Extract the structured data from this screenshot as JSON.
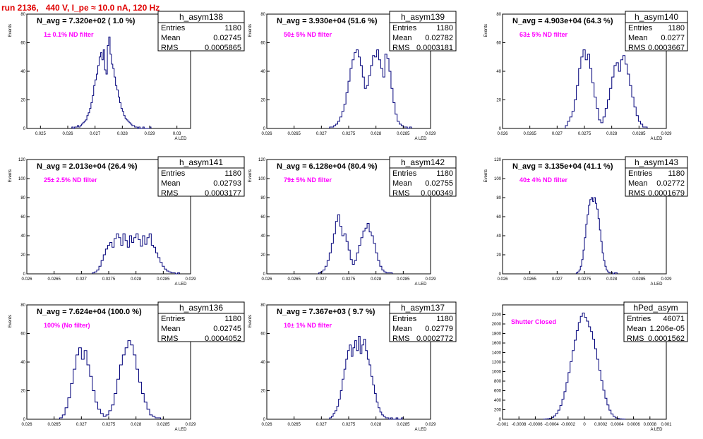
{
  "header": {
    "run_title": "run 2136,   440 V, I_pe ≈ 10.0 nA, 120 Hz"
  },
  "chart_data": [
    {
      "type": "bar",
      "name": "h_asym138",
      "title": "N_avg = 7.320e+02 ( 1.0 %)",
      "note": "1± 0.1% ND filter",
      "xlabel": "A_LED",
      "ylabel": "Events",
      "xlim": [
        0.0245,
        0.0305
      ],
      "ylim": [
        0,
        80
      ],
      "xticks": [
        0.025,
        0.026,
        0.027,
        0.028,
        0.029,
        0.03
      ],
      "xtick_labels": [
        "0.025",
        "0.026",
        "0.027",
        "0.028",
        "0.029",
        "0.03"
      ],
      "yticks": [
        0,
        20,
        40,
        60,
        80
      ],
      "stats": {
        "Entries": "1180",
        "Mean": "0.02745",
        "RMS": "0.0005865"
      },
      "bins": {
        "x_start": 0.02615,
        "x_end": 0.02905,
        "values": [
          1,
          0,
          1,
          1,
          2,
          1,
          2,
          3,
          4,
          5,
          6,
          9,
          11,
          14,
          18,
          23,
          30,
          34,
          38,
          44,
          50,
          53,
          48,
          55,
          41,
          38,
          58,
          64,
          52,
          45,
          42,
          36,
          30,
          27,
          22,
          18,
          14,
          12,
          9,
          7,
          6,
          5,
          4,
          3,
          2,
          2,
          1,
          1,
          0,
          1,
          0,
          0,
          1,
          0,
          0,
          0,
          0,
          1
        ]
      }
    },
    {
      "type": "bar",
      "name": "h_asym139",
      "title": "N_avg = 3.930e+04 (51.6 %)",
      "note": "50± 5% ND filter",
      "xlabel": "A_LED",
      "ylabel": "Events",
      "xlim": [
        0.026,
        0.029
      ],
      "ylim": [
        0,
        80
      ],
      "xticks": [
        0.026,
        0.0265,
        0.027,
        0.0275,
        0.028,
        0.0285,
        0.029
      ],
      "xtick_labels": [
        "0.026",
        "0.0265",
        "0.027",
        "0.0275",
        "0.028",
        "0.0285",
        "0.029"
      ],
      "yticks": [
        0,
        20,
        40,
        60,
        80
      ],
      "stats": {
        "Entries": "1180",
        "Mean": "0.02782",
        "RMS": "0.0003181"
      },
      "bins": {
        "x_start": 0.02715,
        "x_end": 0.02865,
        "values": [
          1,
          1,
          2,
          3,
          5,
          8,
          12,
          17,
          25,
          33,
          42,
          48,
          53,
          55,
          50,
          44,
          36,
          28,
          30,
          37,
          44,
          51,
          50,
          55,
          48,
          42,
          36,
          52,
          49,
          40,
          28,
          18,
          10,
          5,
          3,
          2,
          1,
          1,
          0,
          1
        ]
      }
    },
    {
      "type": "bar",
      "name": "h_asym140",
      "title": "N_avg = 4.903e+04 (64.3 %)",
      "note": "63± 5% ND filter",
      "xlabel": "A_LED",
      "ylabel": "Events",
      "xlim": [
        0.026,
        0.029
      ],
      "ylim": [
        0,
        80
      ],
      "xticks": [
        0.026,
        0.0265,
        0.027,
        0.0275,
        0.028,
        0.0285,
        0.029
      ],
      "xtick_labels": [
        "0.026",
        "0.0265",
        "0.027",
        "0.0275",
        "0.028",
        "0.0285",
        "0.029"
      ],
      "yticks": [
        0,
        20,
        40,
        60,
        80
      ],
      "stats": {
        "Entries": "1180",
        "Mean": "0.0277",
        "RMS": "0.0003667"
      },
      "bins": {
        "x_start": 0.02715,
        "x_end": 0.02865,
        "values": [
          2,
          5,
          8,
          12,
          20,
          30,
          42,
          50,
          55,
          48,
          52,
          42,
          32,
          22,
          14,
          6,
          4,
          8,
          14,
          20,
          28,
          36,
          44,
          46,
          40,
          48,
          51,
          45,
          38,
          30,
          22,
          15,
          9,
          5,
          3,
          1,
          1
        ]
      }
    },
    {
      "type": "bar",
      "name": "h_asym141",
      "title": "N_avg = 2.013e+04 (26.4 %)",
      "note": "25± 2.5% ND filter",
      "xlabel": "A_LED",
      "ylabel": "Events",
      "xlim": [
        0.026,
        0.029
      ],
      "ylim": [
        0,
        120
      ],
      "xticks": [
        0.026,
        0.0265,
        0.027,
        0.0275,
        0.028,
        0.0285,
        0.029
      ],
      "xtick_labels": [
        "0.026",
        "0.0265",
        "0.027",
        "0.0275",
        "0.028",
        "0.0285",
        "0.029"
      ],
      "yticks": [
        0,
        20,
        40,
        60,
        80,
        100,
        120
      ],
      "stats": {
        "Entries": "1180",
        "Mean": "0.02793",
        "RMS": "0.0003177"
      },
      "bins": {
        "x_start": 0.0272,
        "x_end": 0.0288,
        "values": [
          1,
          2,
          4,
          8,
          14,
          20,
          26,
          30,
          33,
          28,
          37,
          42,
          38,
          30,
          42,
          35,
          28,
          40,
          33,
          38,
          42,
          36,
          29,
          40,
          31,
          38,
          42,
          30,
          28,
          22,
          17,
          12,
          8,
          5,
          3,
          2,
          1,
          1,
          0,
          1
        ]
      }
    },
    {
      "type": "bar",
      "name": "h_asym142",
      "title": "N_avg = 6.128e+04 (80.4 %)",
      "note": "79± 5% ND filter",
      "xlabel": "A_LED",
      "ylabel": "Events",
      "xlim": [
        0.026,
        0.029
      ],
      "ylim": [
        0,
        120
      ],
      "xticks": [
        0.026,
        0.0265,
        0.027,
        0.0275,
        0.028,
        0.0285,
        0.029
      ],
      "xtick_labels": [
        "0.026",
        "0.0265",
        "0.027",
        "0.0275",
        "0.028",
        "0.0285",
        "0.029"
      ],
      "yticks": [
        0,
        20,
        40,
        60,
        80,
        100,
        120
      ],
      "stats": {
        "Entries": "1180",
        "Mean": "0.02755",
        "RMS": "0.000349"
      },
      "bins": {
        "x_start": 0.02695,
        "x_end": 0.0283,
        "values": [
          1,
          2,
          4,
          8,
          14,
          22,
          32,
          42,
          55,
          62,
          50,
          40,
          42,
          34,
          25,
          15,
          10,
          14,
          22,
          30,
          38,
          45,
          48,
          53,
          44,
          40,
          32,
          22,
          14,
          8,
          4,
          2,
          1,
          1,
          1
        ]
      }
    },
    {
      "type": "bar",
      "name": "h_asym143",
      "title": "N_avg = 3.135e+04 (41.1 %)",
      "note": "40± 4% ND filter",
      "xlabel": "A_LED",
      "ylabel": "Events",
      "xlim": [
        0.026,
        0.029
      ],
      "ylim": [
        0,
        120
      ],
      "xticks": [
        0.026,
        0.0265,
        0.027,
        0.0275,
        0.028,
        0.0285,
        0.029
      ],
      "xtick_labels": [
        "0.026",
        "0.0265",
        "0.027",
        "0.0275",
        "0.028",
        "0.0285",
        "0.029"
      ],
      "yticks": [
        0,
        20,
        40,
        60,
        80,
        100,
        120
      ],
      "stats": {
        "Entries": "1180",
        "Mean": "0.02772",
        "RMS": "0.0001679"
      },
      "bins": {
        "x_start": 0.02735,
        "x_end": 0.0281,
        "values": [
          1,
          2,
          4,
          8,
          15,
          25,
          38,
          52,
          62,
          72,
          78,
          80,
          76,
          80,
          74,
          68,
          58,
          46,
          34,
          22,
          14,
          8,
          4,
          2,
          1,
          1,
          1,
          0,
          1,
          1
        ]
      }
    },
    {
      "type": "bar",
      "name": "h_asym136",
      "title": "N_avg = 7.624e+04 (100.0 %)",
      "note": "100% (No filter)",
      "xlabel": "A_LED",
      "ylabel": "Events",
      "xlim": [
        0.026,
        0.029
      ],
      "ylim": [
        0,
        80
      ],
      "xticks": [
        0.026,
        0.0265,
        0.027,
        0.0275,
        0.028,
        0.0285,
        0.029
      ],
      "xtick_labels": [
        "0.026",
        "0.0265",
        "0.027",
        "0.0275",
        "0.028",
        "0.0285",
        "0.029"
      ],
      "yticks": [
        0,
        20,
        40,
        60,
        80
      ],
      "stats": {
        "Entries": "1180",
        "Mean": "0.02745",
        "RMS": "0.0004052"
      },
      "bins": {
        "x_start": 0.0266,
        "x_end": 0.02845,
        "values": [
          1,
          3,
          8,
          15,
          25,
          35,
          45,
          50,
          42,
          48,
          38,
          30,
          20,
          12,
          7,
          4,
          2,
          3,
          6,
          10,
          18,
          28,
          38,
          45,
          50,
          55,
          52,
          45,
          35,
          26,
          18,
          12,
          7,
          3,
          2,
          1,
          1
        ]
      }
    },
    {
      "type": "bar",
      "name": "h_asym137",
      "title": "N_avg = 7.367e+03 ( 9.7 %)",
      "note": "10± 1% ND filter",
      "xlabel": "A_LED",
      "ylabel": "Events",
      "xlim": [
        0.026,
        0.029
      ],
      "ylim": [
        0,
        80
      ],
      "xticks": [
        0.026,
        0.0265,
        0.027,
        0.0275,
        0.028,
        0.0285,
        0.029
      ],
      "xtick_labels": [
        "0.026",
        "0.0265",
        "0.027",
        "0.0275",
        "0.028",
        "0.0285",
        "0.029"
      ],
      "yticks": [
        0,
        20,
        40,
        60,
        80
      ],
      "stats": {
        "Entries": "1180",
        "Mean": "0.02779",
        "RMS": "0.0002772"
      },
      "bins": {
        "x_start": 0.02715,
        "x_end": 0.0285,
        "values": [
          1,
          2,
          4,
          6,
          9,
          14,
          20,
          28,
          35,
          42,
          48,
          52,
          44,
          50,
          55,
          48,
          58,
          46,
          52,
          56,
          48,
          42,
          38,
          30,
          24,
          18,
          12,
          8,
          5,
          3,
          2,
          1,
          1,
          0,
          1,
          0,
          0,
          1,
          0,
          0,
          1
        ]
      }
    },
    {
      "type": "bar",
      "name": "hPed_asym",
      "title": "",
      "note": "Shutter Closed",
      "xlabel": "A_LED",
      "ylabel": "",
      "xlim": [
        -0.001,
        0.001
      ],
      "ylim": [
        0,
        2400
      ],
      "xticks": [
        -0.001,
        -0.0008,
        -0.0006,
        -0.0004,
        -0.0002,
        0,
        0.0002,
        0.0004,
        0.0006,
        0.0008,
        0.001
      ],
      "xtick_labels": [
        "-0.001",
        "-0.0008",
        "-0.0006",
        "-0.0004",
        "-0.0002",
        "0",
        "0.0002",
        "0.0004",
        "0.0006",
        "0.0008",
        "0.001"
      ],
      "yticks": [
        0,
        200,
        400,
        600,
        800,
        1000,
        1200,
        1400,
        1600,
        1800,
        2000,
        2200
      ],
      "stats": {
        "Entries": "46071",
        "Mean": "1.206e-05",
        "RMS": "0.0001562"
      },
      "bins": {
        "x_start": -0.0005,
        "x_end": 0.0005,
        "values": [
          2,
          5,
          10,
          20,
          40,
          70,
          120,
          190,
          290,
          420,
          580,
          770,
          980,
          1210,
          1440,
          1660,
          1860,
          2030,
          2160,
          2230,
          2140,
          2060,
          1940,
          1840,
          1680,
          1480,
          1260,
          1030,
          810,
          610,
          440,
          300,
          190,
          110,
          60,
          30,
          15,
          8,
          4,
          2
        ]
      }
    }
  ]
}
